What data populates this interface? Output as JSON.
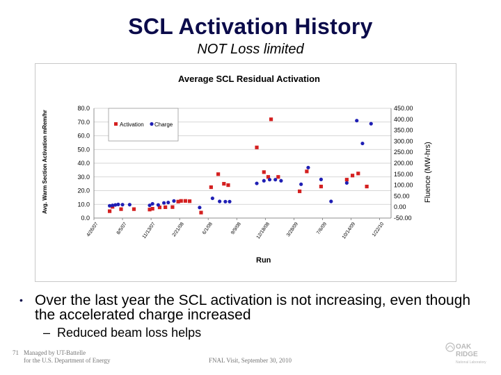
{
  "slide": {
    "title": "SCL Activation History",
    "subtitle": "NOT Loss limited",
    "bullet": "Over the last year the SCL activation is not increasing, even though the accelerated charge increased",
    "subbullet": "Reduced beam loss helps",
    "slide_number": "71",
    "footer_left_line1": "Managed by UT-Battelle",
    "footer_left_line2": "for the U.S. Department of Energy",
    "footer_center": "FNAL Visit, September 30, 2010",
    "logo_line1": "OAK",
    "logo_line2": "RIDGE",
    "logo_line3": "National Laboratory"
  },
  "chart_data": {
    "type": "scatter",
    "title": "Average SCL Residual Activation",
    "xlabel": "Run",
    "ylabel": "Avg. Warm Section Activation mRem/hr",
    "y2label": "Fluence (MW-hrs)",
    "ylim": [
      0,
      80
    ],
    "y2lim": [
      -50,
      450
    ],
    "yticks": [
      "0.0",
      "10.0",
      "20.0",
      "30.0",
      "40.0",
      "50.0",
      "60.0",
      "70.0",
      "80.0"
    ],
    "y2ticks": [
      "-50.00",
      "0.00",
      "50.00",
      "100.00",
      "150.00",
      "200.00",
      "250.00",
      "300.00",
      "350.00",
      "400.00",
      "450.00"
    ],
    "xticks": [
      "4/26/07",
      "8/5/07",
      "11/13/07",
      "2/21/08",
      "6/1/08",
      "9/9/08",
      "12/18/08",
      "3/28/09",
      "7/6/09",
      "10/14/09",
      "1/22/10"
    ],
    "xlim": [
      0,
      10.4
    ],
    "colors": {
      "activation": "#d42020",
      "charge": "#1f1fb4"
    },
    "series": [
      {
        "name": "Activation",
        "axis": "left",
        "marker": "square",
        "points": [
          [
            0.55,
            5.0
          ],
          [
            0.65,
            8.2
          ],
          [
            0.95,
            6.5
          ],
          [
            1.4,
            6.5
          ],
          [
            1.95,
            6.2
          ],
          [
            2.05,
            6.8
          ],
          [
            2.3,
            7.8
          ],
          [
            2.5,
            7.9
          ],
          [
            2.75,
            8.0
          ],
          [
            2.95,
            12.0
          ],
          [
            3.05,
            12.5
          ],
          [
            3.2,
            12.5
          ],
          [
            3.35,
            12.3
          ],
          [
            3.75,
            4.0
          ],
          [
            4.1,
            22.5
          ],
          [
            4.35,
            32.0
          ],
          [
            4.55,
            25.0
          ],
          [
            4.7,
            24.0
          ],
          [
            5.7,
            51.5
          ],
          [
            5.95,
            33.5
          ],
          [
            6.1,
            30.0
          ],
          [
            6.2,
            72.0
          ],
          [
            6.45,
            30.0
          ],
          [
            7.2,
            19.5
          ],
          [
            7.45,
            34.0
          ],
          [
            7.95,
            23.0
          ],
          [
            8.85,
            28.0
          ],
          [
            9.05,
            31.0
          ],
          [
            9.25,
            32.5
          ],
          [
            9.55,
            23.0
          ]
        ]
      },
      {
        "name": "Charge",
        "axis": "right",
        "marker": "circle",
        "points": [
          [
            0.55,
            6.0
          ],
          [
            0.65,
            8.0
          ],
          [
            0.75,
            10.0
          ],
          [
            0.85,
            12.0
          ],
          [
            1.0,
            11.0
          ],
          [
            1.25,
            11.0
          ],
          [
            1.95,
            8.0
          ],
          [
            2.05,
            15.0
          ],
          [
            2.25,
            10.0
          ],
          [
            2.45,
            19.0
          ],
          [
            2.6,
            21.0
          ],
          [
            2.8,
            28.0
          ],
          [
            3.7,
            -2.0
          ],
          [
            4.15,
            40.0
          ],
          [
            4.4,
            26.0
          ],
          [
            4.6,
            25.0
          ],
          [
            4.75,
            25.0
          ],
          [
            5.7,
            108.0
          ],
          [
            5.95,
            120.0
          ],
          [
            6.15,
            125.0
          ],
          [
            6.35,
            125.0
          ],
          [
            6.55,
            120.0
          ],
          [
            7.25,
            104.0
          ],
          [
            7.5,
            180.0
          ],
          [
            7.95,
            126.0
          ],
          [
            8.3,
            26.0
          ],
          [
            8.85,
            110.0
          ],
          [
            9.2,
            394.0
          ],
          [
            9.4,
            290.0
          ],
          [
            9.7,
            380.0
          ]
        ]
      }
    ],
    "legend": {
      "position": "top-left",
      "entries": [
        "Activation",
        "Charge"
      ]
    }
  }
}
